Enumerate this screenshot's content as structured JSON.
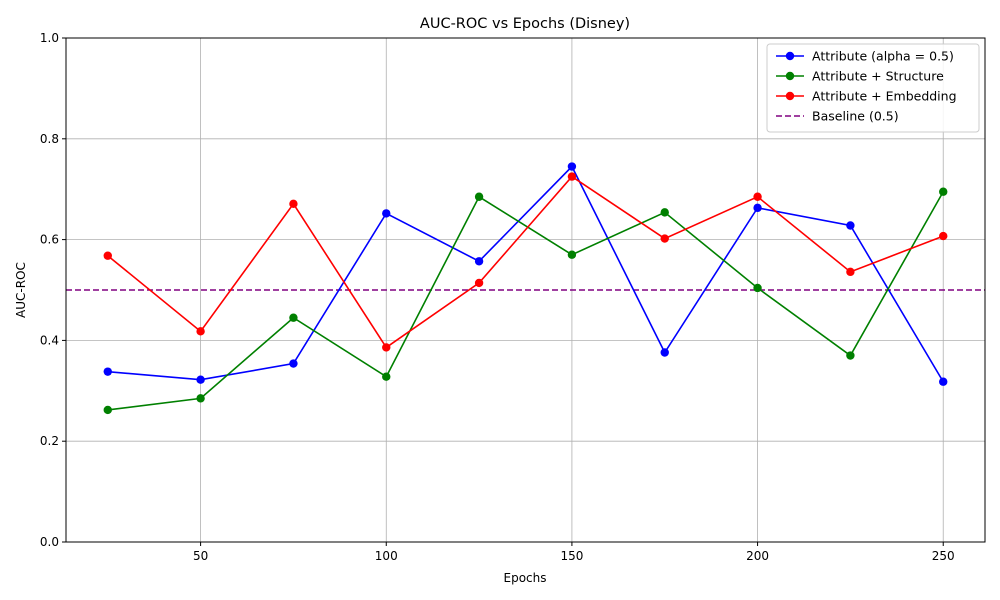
{
  "chart_data": {
    "type": "line",
    "title": "AUC-ROC vs Epochs (Disney)",
    "xlabel": "Epochs",
    "ylabel": "AUC-ROC",
    "x": [
      25,
      50,
      75,
      100,
      125,
      150,
      175,
      200,
      225,
      250
    ],
    "xlim": [
      13.75,
      261.25
    ],
    "ylim": [
      0,
      1
    ],
    "xticks": [
      50,
      100,
      150,
      200,
      250
    ],
    "yticks": [
      0.0,
      0.2,
      0.4,
      0.6,
      0.8,
      1.0
    ],
    "xtick_labels": [
      "50",
      "100",
      "150",
      "200",
      "250"
    ],
    "ytick_labels": [
      "0.0",
      "0.2",
      "0.4",
      "0.6",
      "0.8",
      "1.0"
    ],
    "grid": true,
    "legend_position": "top-right",
    "series": [
      {
        "name": "Attribute (alpha = 0.5)",
        "color": "#0000ff",
        "marker": "circle",
        "values": [
          0.338,
          0.322,
          0.354,
          0.652,
          0.557,
          0.745,
          0.376,
          0.663,
          0.628,
          0.318
        ]
      },
      {
        "name": "Attribute + Structure",
        "color": "#008000",
        "marker": "circle",
        "values": [
          0.262,
          0.285,
          0.445,
          0.328,
          0.685,
          0.57,
          0.654,
          0.504,
          0.37,
          0.695
        ]
      },
      {
        "name": "Attribute + Embedding",
        "color": "#ff0000",
        "marker": "circle",
        "values": [
          0.568,
          0.418,
          0.671,
          0.386,
          0.514,
          0.725,
          0.602,
          0.685,
          0.536,
          0.607
        ]
      }
    ],
    "baseline": {
      "name": "Baseline (0.5)",
      "value": 0.5,
      "color": "#800080",
      "style": "dashed"
    }
  }
}
